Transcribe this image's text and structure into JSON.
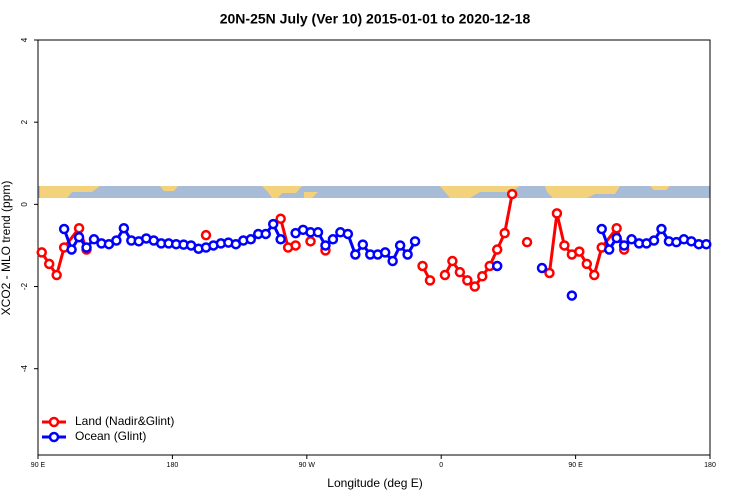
{
  "chart_data": {
    "type": "line",
    "title": "20N-25N July (Ver 10)   2015-01-01 to 2020-12-18",
    "xlabel": "Longitude (deg E)",
    "ylabel": "XCO2 - MLO trend (ppm)",
    "xlim": [
      90,
      540
    ],
    "ylim": [
      -6.1,
      4
    ],
    "xticks": [
      {
        "value": 90,
        "label": "90 E"
      },
      {
        "value": 180,
        "label": "180"
      },
      {
        "value": 270,
        "label": "90 W"
      },
      {
        "value": 360,
        "label": "0"
      },
      {
        "value": 450,
        "label": "90 E"
      },
      {
        "value": 540,
        "label": "180"
      }
    ],
    "yticks": [
      -4,
      -2,
      0,
      2,
      4
    ],
    "legend": "lower left",
    "series": [
      {
        "name": "Land (Nadir&Glint)",
        "color": "#ff0000",
        "x": [
          92.5,
          97.5,
          102.5,
          107.5,
          117.5,
          122.5,
          127.5,
          202.5,
          207.5,
          252.5,
          257.5,
          262.5,
          267.5,
          272.5,
          277.5,
          282.5,
          287.5,
          347.5,
          352.5,
          357.5,
          362.5,
          367.5,
          372.5,
          377.5,
          382.5,
          387.5,
          392.5,
          397.5,
          402.5,
          407.5,
          412.5,
          417.5,
          422.5,
          432.5,
          437.5,
          442.5,
          447.5,
          452.5,
          457.5,
          462.5,
          467.5,
          477.5,
          482.5
        ],
        "values": [
          -1.17,
          -1.45,
          -1.72,
          -1.05,
          -0.58,
          -1.1,
          null,
          -0.75,
          null,
          -0.35,
          -1.05,
          -1.0,
          null,
          -0.9,
          null,
          -1.12,
          null,
          -1.5,
          -1.85,
          null,
          -1.72,
          -1.38,
          -1.65,
          -1.85,
          -2.0,
          -1.75,
          -1.5,
          -1.1,
          -0.7,
          0.25,
          null,
          -0.92,
          null,
          -1.67,
          -0.22,
          -1.0,
          -1.22,
          -1.15,
          -1.45,
          -1.72,
          -1.05,
          -0.58,
          -1.1
        ]
      },
      {
        "name": "Ocean (Glint)",
        "color": "#0000ff",
        "x": [
          107.5,
          112.5,
          117.5,
          122.5,
          127.5,
          132.5,
          137.5,
          142.5,
          147.5,
          152.5,
          157.5,
          162.5,
          167.5,
          172.5,
          177.5,
          182.5,
          187.5,
          192.5,
          197.5,
          202.5,
          207.5,
          212.5,
          217.5,
          222.5,
          227.5,
          232.5,
          237.5,
          242.5,
          247.5,
          252.5,
          257.5,
          262.5,
          267.5,
          272.5,
          277.5,
          282.5,
          287.5,
          292.5,
          297.5,
          302.5,
          307.5,
          312.5,
          317.5,
          322.5,
          327.5,
          332.5,
          337.5,
          342.5,
          347.5,
          397.5,
          402.5,
          427.5,
          432.5,
          447.5,
          452.5,
          467.5,
          472.5,
          477.5,
          482.5,
          487.5,
          492.5,
          497.5,
          502.5,
          507.5,
          512.5,
          517.5,
          522.5,
          527.5,
          532.5,
          537.5
        ],
        "values": [
          -0.6,
          -1.1,
          -0.8,
          -1.05,
          -0.85,
          -0.95,
          -0.97,
          -0.88,
          -0.58,
          -0.88,
          -0.9,
          -0.83,
          -0.88,
          -0.95,
          -0.95,
          -0.97,
          -0.98,
          -1.0,
          -1.08,
          -1.05,
          -1.0,
          -0.95,
          -0.93,
          -0.97,
          -0.88,
          -0.85,
          -0.72,
          -0.72,
          -0.48,
          -0.85,
          null,
          -0.7,
          -0.62,
          -0.68,
          -0.68,
          -1.0,
          -0.85,
          -0.68,
          -0.72,
          -1.22,
          -0.98,
          -1.22,
          -1.22,
          -1.17,
          -1.38,
          -1.0,
          -1.22,
          -0.9,
          null,
          -1.5,
          null,
          -1.55,
          null,
          -2.22,
          null,
          -0.6,
          -1.1,
          -0.82,
          -1.0,
          -0.85,
          -0.95,
          -0.95,
          -0.88,
          -0.6,
          -0.9,
          -0.92,
          -0.85,
          -0.9,
          -0.97,
          -0.97
        ]
      }
    ]
  }
}
